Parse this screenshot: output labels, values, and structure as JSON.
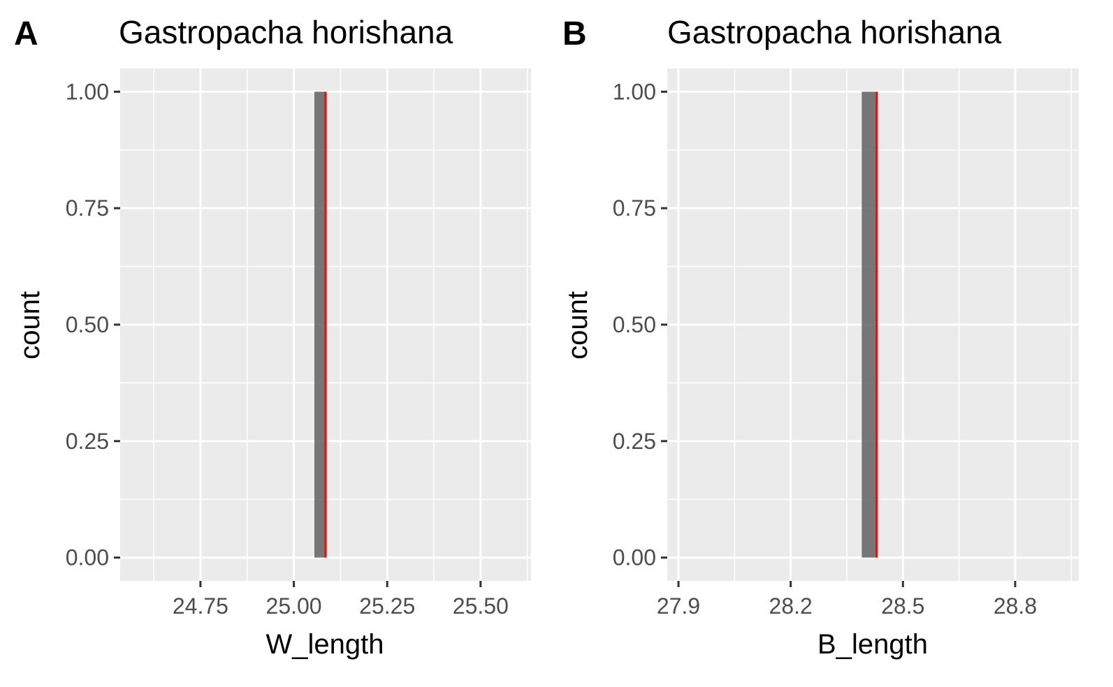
{
  "chart_data": [
    {
      "type": "bar",
      "panel": "A",
      "title": "Gastropacha horishana",
      "xlabel": "W_length",
      "ylabel": "count",
      "xlim": [
        24.535,
        25.635
      ],
      "ylim": [
        -0.05,
        1.05
      ],
      "x_major_ticks": [
        24.75,
        25.0,
        25.25,
        25.5
      ],
      "x_tick_labels": [
        "24.75",
        "25.00",
        "25.25",
        "25.50"
      ],
      "x_minor_ticks": [
        24.625,
        24.875,
        25.125,
        25.375,
        25.625
      ],
      "y_major_ticks": [
        0,
        0.25,
        0.5,
        0.75,
        1.0
      ],
      "y_tick_labels": [
        "0.00",
        "0.25",
        "0.50",
        "0.75",
        "1.00"
      ],
      "y_minor_ticks": [
        0.125,
        0.375,
        0.625,
        0.875
      ],
      "bars": [
        {
          "xmin": 25.055,
          "xmax": 25.085,
          "count": 1
        }
      ],
      "vline": {
        "x": 25.085,
        "color": "#ff0000"
      },
      "grid": true,
      "background": "#ebebeb",
      "bar_color": "#595959"
    },
    {
      "type": "bar",
      "panel": "B",
      "title": "Gastropacha horishana",
      "xlabel": "B_length",
      "ylabel": "count",
      "xlim": [
        27.87,
        28.97
      ],
      "ylim": [
        -0.05,
        1.05
      ],
      "x_major_ticks": [
        27.9,
        28.2,
        28.5,
        28.8
      ],
      "x_tick_labels": [
        "27.9",
        "28.2",
        "28.5",
        "28.8"
      ],
      "x_minor_ticks": [
        28.05,
        28.35,
        28.65,
        28.95
      ],
      "y_major_ticks": [
        0,
        0.25,
        0.5,
        0.75,
        1.0
      ],
      "y_tick_labels": [
        "0.00",
        "0.25",
        "0.50",
        "0.75",
        "1.00"
      ],
      "y_minor_ticks": [
        0.125,
        0.375,
        0.625,
        0.875
      ],
      "bars": [
        {
          "xmin": 28.39,
          "xmax": 28.43,
          "count": 1
        }
      ],
      "vline": {
        "x": 28.43,
        "color": "#ff0000"
      },
      "grid": true,
      "background": "#ebebeb",
      "bar_color": "#595959"
    }
  ]
}
